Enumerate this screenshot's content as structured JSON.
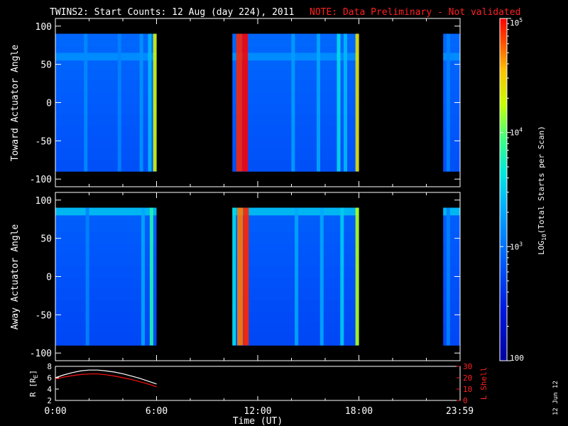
{
  "title": {
    "main": "TWINS2: Start Counts: 12 Aug (day 224), 2011",
    "note": "NOTE: Data Preliminary - Not validated"
  },
  "colors": {
    "background": "#000000",
    "axis": "#ffffff",
    "note": "#ff2020",
    "r_line": "#ffffff",
    "lshell_line": "#ff1010"
  },
  "colorbar": {
    "label": "LOG10(Total Starts per Scan)",
    "label_main": "LOG",
    "label_sub": "10",
    "label_rest": "(Total Starts per Scan)",
    "ticks": [
      {
        "value": 100,
        "text": "100"
      },
      {
        "value": 1000,
        "text_base": "10",
        "text_exp": "3"
      },
      {
        "value": 10000,
        "text_base": "10",
        "text_exp": "4"
      },
      {
        "value": 100000,
        "text_base": "10",
        "text_exp": "5"
      }
    ],
    "range": [
      100,
      100000
    ],
    "scale": "log"
  },
  "footer_date": "12 Jun 12",
  "chart_data": [
    {
      "type": "heatmap",
      "panel": "toward",
      "ylabel": "Toward Actuator Angle",
      "ylim": [
        -110,
        110
      ],
      "yticks": [
        100,
        50,
        0,
        -50,
        -100
      ],
      "xlim": [
        0,
        24
      ],
      "data_y_range": [
        -90,
        90
      ],
      "segments": [
        {
          "start": 0,
          "end": 6.0
        },
        {
          "start": 10.5,
          "end": 18.0
        },
        {
          "start": 23.0,
          "end": 23.99
        }
      ],
      "background_log": 2.8,
      "bright_bands": [
        {
          "t": 1.8,
          "log": 3.15
        },
        {
          "t": 3.8,
          "log": 3.1
        },
        {
          "t": 5.1,
          "log": 3.2
        },
        {
          "t": 5.6,
          "log": 3.4
        },
        {
          "t": 5.9,
          "log": 4.3
        },
        {
          "t": 10.9,
          "log": 4.9
        },
        {
          "t": 11.25,
          "log": 5.0
        },
        {
          "t": 14.1,
          "log": 3.25
        },
        {
          "t": 15.6,
          "log": 3.3
        },
        {
          "t": 16.8,
          "log": 3.6
        },
        {
          "t": 17.2,
          "log": 3.4
        },
        {
          "t": 17.9,
          "log": 4.4
        },
        {
          "t": 23.3,
          "log": 3.1
        }
      ],
      "angle_band": {
        "angle": 60,
        "log": 3.2
      }
    },
    {
      "type": "heatmap",
      "panel": "away",
      "ylabel": "Away Actuator Angle",
      "ylim": [
        -110,
        110
      ],
      "yticks": [
        100,
        50,
        0,
        -50,
        -100
      ],
      "xlim": [
        0,
        24
      ],
      "data_y_range": [
        -90,
        90
      ],
      "segments": [
        {
          "start": 0,
          "end": 6.0
        },
        {
          "start": 10.5,
          "end": 18.0
        },
        {
          "start": 23.0,
          "end": 23.99
        }
      ],
      "background_log": 2.75,
      "bright_bands": [
        {
          "t": 1.9,
          "log": 3.1
        },
        {
          "t": 5.2,
          "log": 3.3
        },
        {
          "t": 5.7,
          "log": 3.8
        },
        {
          "t": 10.6,
          "log": 3.6
        },
        {
          "t": 10.95,
          "log": 4.7
        },
        {
          "t": 11.3,
          "log": 4.9
        },
        {
          "t": 14.3,
          "log": 3.3
        },
        {
          "t": 15.8,
          "log": 3.3
        },
        {
          "t": 17.0,
          "log": 3.5
        },
        {
          "t": 17.9,
          "log": 4.2
        },
        {
          "t": 23.3,
          "log": 3.1
        }
      ],
      "angle_band": {
        "angle": 85,
        "log": 3.5
      }
    },
    {
      "type": "line",
      "panel": "orbit",
      "ylabel": "R [RE]",
      "ylabel_main": "R [R",
      "ylabel_sub": "E",
      "ylabel_end": "]",
      "ylim": [
        2,
        8
      ],
      "yticks": [
        2,
        4,
        6,
        8
      ],
      "y2label": "L Shell",
      "y2lim": [
        0,
        30
      ],
      "y2ticks": [
        0,
        10,
        20,
        30
      ],
      "xlabel": "Time (UT)",
      "xlim": [
        0,
        24
      ],
      "xticks": [
        {
          "t": 0,
          "text": "0:00"
        },
        {
          "t": 6,
          "text": "6:00"
        },
        {
          "t": 12,
          "text": "12:00"
        },
        {
          "t": 18,
          "text": "18:00"
        },
        {
          "t": 23.98,
          "text": "23:59"
        }
      ],
      "series": [
        {
          "name": "R [RE]",
          "axis": "left",
          "x": [
            0,
            0.5,
            1,
            1.5,
            2,
            2.5,
            3,
            3.5,
            4,
            4.5,
            5,
            5.5,
            6
          ],
          "y": [
            6.0,
            6.5,
            6.9,
            7.2,
            7.35,
            7.35,
            7.2,
            7.0,
            6.7,
            6.3,
            5.9,
            5.4,
            4.9
          ]
        },
        {
          "name": "L Shell",
          "axis": "right",
          "x": [
            0,
            0.5,
            1,
            1.5,
            2,
            2.5,
            3,
            3.5,
            4,
            4.5,
            5,
            5.5,
            6
          ],
          "y": [
            19,
            20.5,
            21.8,
            22.8,
            23.3,
            23.3,
            22.6,
            21.5,
            20,
            18.5,
            16.5,
            14.5,
            12
          ]
        }
      ]
    }
  ]
}
